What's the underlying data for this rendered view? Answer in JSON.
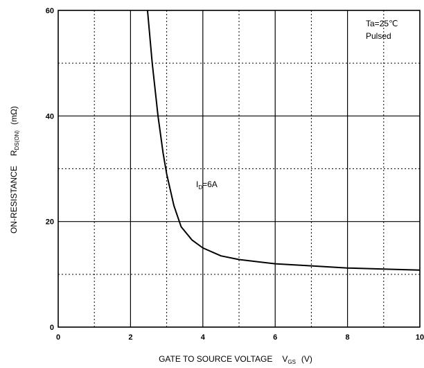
{
  "chart_data": {
    "type": "line",
    "x": [
      2.47,
      2.6,
      2.76,
      2.9,
      3.0,
      3.2,
      3.4,
      3.7,
      4.0,
      4.5,
      5.0,
      6.0,
      7.0,
      8.0,
      9.0,
      10.0
    ],
    "values": [
      60,
      50,
      40,
      33,
      29,
      23,
      19,
      16.5,
      15,
      13.5,
      12.8,
      12,
      11.6,
      11.2,
      11,
      10.8
    ],
    "color": "#000000",
    "xlim": [
      0,
      10
    ],
    "ylim": [
      0,
      60
    ],
    "xticks": [
      0,
      2,
      4,
      6,
      8,
      10
    ],
    "yticks": [
      0,
      20,
      40,
      60
    ],
    "xminor": [
      1,
      3,
      5,
      7,
      9
    ],
    "yminor": [
      10,
      30,
      50
    ],
    "grid": true,
    "x_label": {
      "text": "GATE TO SOURCE VOLTAGE",
      "symbol": "V",
      "subscript": "GS",
      "unit": "(V)"
    },
    "y_label": {
      "text": "ON-RESISTANCE",
      "symbol": "R",
      "subscript": "DS(ON)",
      "unit": "(mΩ)"
    },
    "conditions": [
      "Ta=25℃",
      "Pulsed"
    ],
    "curve_label": {
      "symbol": "I",
      "subscript": "D",
      "text": "=6A"
    }
  }
}
